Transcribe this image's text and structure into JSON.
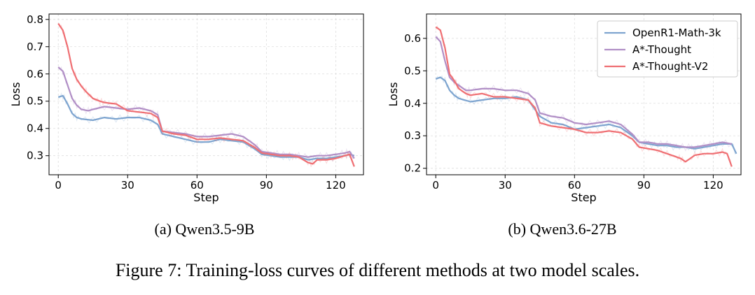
{
  "colors": {
    "OpenR1-Math-3k": "#7da4cf",
    "A*-Thought": "#b18fc6",
    "A*-Thought-V2": "#ef6f73"
  },
  "caption": "Figure 7: Training-loss curves of different methods at two model scales.",
  "chart_data": [
    {
      "type": "line",
      "subcaption": "(a) Qwen3.5-9B",
      "xlabel": "Step",
      "ylabel": "Loss",
      "xlim": [
        -4,
        132
      ],
      "ylim": [
        0.23,
        0.82
      ],
      "xticks": [
        0,
        30,
        60,
        90,
        120
      ],
      "yticks": [
        0.3,
        0.4,
        0.5,
        0.6,
        0.7,
        0.8
      ],
      "ytick_labels": [
        "0.3",
        "0.4",
        "0.5",
        "0.6",
        "0.7",
        "0.8"
      ],
      "grid": true,
      "legend": null,
      "series": [
        {
          "name": "OpenR1-Math-3k",
          "points": [
            [
              0,
              0.515
            ],
            [
              2,
              0.52
            ],
            [
              4,
              0.49
            ],
            [
              6,
              0.455
            ],
            [
              8,
              0.44
            ],
            [
              10,
              0.435
            ],
            [
              15,
              0.43
            ],
            [
              20,
              0.44
            ],
            [
              25,
              0.435
            ],
            [
              30,
              0.44
            ],
            [
              35,
              0.44
            ],
            [
              40,
              0.43
            ],
            [
              43,
              0.415
            ],
            [
              45,
              0.38
            ],
            [
              50,
              0.37
            ],
            [
              55,
              0.36
            ],
            [
              60,
              0.35
            ],
            [
              65,
              0.35
            ],
            [
              70,
              0.36
            ],
            [
              75,
              0.355
            ],
            [
              80,
              0.35
            ],
            [
              85,
              0.325
            ],
            [
              88,
              0.305
            ],
            [
              92,
              0.3
            ],
            [
              96,
              0.295
            ],
            [
              100,
              0.295
            ],
            [
              104,
              0.295
            ],
            [
              108,
              0.285
            ],
            [
              112,
              0.29
            ],
            [
              116,
              0.29
            ],
            [
              120,
              0.295
            ],
            [
              124,
              0.3
            ],
            [
              126,
              0.305
            ],
            [
              128,
              0.3
            ]
          ]
        },
        {
          "name": "A*-Thought",
          "points": [
            [
              0,
              0.625
            ],
            [
              2,
              0.61
            ],
            [
              4,
              0.56
            ],
            [
              6,
              0.51
            ],
            [
              8,
              0.485
            ],
            [
              10,
              0.47
            ],
            [
              13,
              0.465
            ],
            [
              15,
              0.47
            ],
            [
              20,
              0.48
            ],
            [
              25,
              0.475
            ],
            [
              30,
              0.47
            ],
            [
              35,
              0.475
            ],
            [
              40,
              0.465
            ],
            [
              43,
              0.45
            ],
            [
              45,
              0.39
            ],
            [
              50,
              0.385
            ],
            [
              55,
              0.38
            ],
            [
              60,
              0.37
            ],
            [
              65,
              0.37
            ],
            [
              70,
              0.375
            ],
            [
              75,
              0.38
            ],
            [
              80,
              0.37
            ],
            [
              85,
              0.34
            ],
            [
              88,
              0.315
            ],
            [
              92,
              0.31
            ],
            [
              96,
              0.305
            ],
            [
              100,
              0.305
            ],
            [
              104,
              0.3
            ],
            [
              108,
              0.295
            ],
            [
              112,
              0.3
            ],
            [
              116,
              0.3
            ],
            [
              120,
              0.305
            ],
            [
              124,
              0.31
            ],
            [
              126,
              0.315
            ],
            [
              128,
              0.29
            ]
          ]
        },
        {
          "name": "A*-Thought-V2",
          "points": [
            [
              0,
              0.785
            ],
            [
              2,
              0.76
            ],
            [
              4,
              0.7
            ],
            [
              6,
              0.62
            ],
            [
              8,
              0.58
            ],
            [
              10,
              0.555
            ],
            [
              12,
              0.535
            ],
            [
              15,
              0.51
            ],
            [
              18,
              0.5
            ],
            [
              20,
              0.495
            ],
            [
              25,
              0.49
            ],
            [
              30,
              0.465
            ],
            [
              35,
              0.46
            ],
            [
              40,
              0.455
            ],
            [
              43,
              0.44
            ],
            [
              45,
              0.39
            ],
            [
              50,
              0.38
            ],
            [
              55,
              0.375
            ],
            [
              60,
              0.36
            ],
            [
              65,
              0.36
            ],
            [
              70,
              0.365
            ],
            [
              75,
              0.36
            ],
            [
              80,
              0.355
            ],
            [
              85,
              0.33
            ],
            [
              88,
              0.31
            ],
            [
              92,
              0.305
            ],
            [
              96,
              0.3
            ],
            [
              100,
              0.3
            ],
            [
              104,
              0.295
            ],
            [
              108,
              0.275
            ],
            [
              110,
              0.27
            ],
            [
              112,
              0.285
            ],
            [
              116,
              0.285
            ],
            [
              120,
              0.29
            ],
            [
              124,
              0.3
            ],
            [
              126,
              0.305
            ],
            [
              128,
              0.26
            ]
          ]
        }
      ]
    },
    {
      "type": "line",
      "subcaption": "(b) Qwen3.6-27B",
      "xlabel": "Step",
      "ylabel": "Loss",
      "xlim": [
        -4,
        132
      ],
      "ylim": [
        0.18,
        0.675
      ],
      "xticks": [
        0,
        30,
        60,
        90,
        120
      ],
      "yticks": [
        0.2,
        0.3,
        0.4,
        0.5,
        0.6
      ],
      "ytick_labels": [
        "0.2",
        "0.3",
        "0.4",
        "0.5",
        "0.6"
      ],
      "grid": true,
      "legend": "top-right",
      "series": [
        {
          "name": "OpenR1-Math-3k",
          "points": [
            [
              0,
              0.475
            ],
            [
              2,
              0.48
            ],
            [
              4,
              0.47
            ],
            [
              6,
              0.44
            ],
            [
              8,
              0.425
            ],
            [
              10,
              0.415
            ],
            [
              15,
              0.405
            ],
            [
              20,
              0.41
            ],
            [
              25,
              0.415
            ],
            [
              30,
              0.415
            ],
            [
              35,
              0.42
            ],
            [
              40,
              0.41
            ],
            [
              43,
              0.38
            ],
            [
              45,
              0.36
            ],
            [
              50,
              0.34
            ],
            [
              55,
              0.335
            ],
            [
              60,
              0.32
            ],
            [
              65,
              0.325
            ],
            [
              70,
              0.33
            ],
            [
              75,
              0.335
            ],
            [
              80,
              0.325
            ],
            [
              85,
              0.3
            ],
            [
              88,
              0.28
            ],
            [
              92,
              0.275
            ],
            [
              96,
              0.27
            ],
            [
              100,
              0.27
            ],
            [
              104,
              0.265
            ],
            [
              108,
              0.265
            ],
            [
              112,
              0.26
            ],
            [
              116,
              0.265
            ],
            [
              120,
              0.27
            ],
            [
              124,
              0.275
            ],
            [
              128,
              0.275
            ],
            [
              130,
              0.245
            ]
          ]
        },
        {
          "name": "A*-Thought",
          "points": [
            [
              0,
              0.605
            ],
            [
              2,
              0.59
            ],
            [
              4,
              0.53
            ],
            [
              6,
              0.48
            ],
            [
              8,
              0.465
            ],
            [
              10,
              0.455
            ],
            [
              13,
              0.44
            ],
            [
              15,
              0.44
            ],
            [
              20,
              0.445
            ],
            [
              25,
              0.445
            ],
            [
              30,
              0.44
            ],
            [
              35,
              0.44
            ],
            [
              40,
              0.43
            ],
            [
              43,
              0.41
            ],
            [
              45,
              0.37
            ],
            [
              50,
              0.36
            ],
            [
              55,
              0.355
            ],
            [
              60,
              0.34
            ],
            [
              65,
              0.335
            ],
            [
              70,
              0.34
            ],
            [
              75,
              0.345
            ],
            [
              80,
              0.335
            ],
            [
              85,
              0.305
            ],
            [
              88,
              0.28
            ],
            [
              92,
              0.28
            ],
            [
              96,
              0.275
            ],
            [
              100,
              0.275
            ],
            [
              104,
              0.27
            ],
            [
              108,
              0.265
            ],
            [
              112,
              0.265
            ],
            [
              116,
              0.27
            ],
            [
              120,
              0.275
            ],
            [
              124,
              0.28
            ],
            [
              128,
              0.275
            ]
          ]
        },
        {
          "name": "A*-Thought-V2",
          "points": [
            [
              0,
              0.635
            ],
            [
              2,
              0.625
            ],
            [
              4,
              0.57
            ],
            [
              6,
              0.49
            ],
            [
              8,
              0.47
            ],
            [
              10,
              0.445
            ],
            [
              13,
              0.43
            ],
            [
              15,
              0.425
            ],
            [
              20,
              0.43
            ],
            [
              25,
              0.42
            ],
            [
              30,
              0.42
            ],
            [
              35,
              0.415
            ],
            [
              40,
              0.41
            ],
            [
              43,
              0.385
            ],
            [
              45,
              0.34
            ],
            [
              50,
              0.33
            ],
            [
              55,
              0.325
            ],
            [
              60,
              0.32
            ],
            [
              65,
              0.31
            ],
            [
              70,
              0.31
            ],
            [
              75,
              0.315
            ],
            [
              80,
              0.31
            ],
            [
              85,
              0.29
            ],
            [
              88,
              0.265
            ],
            [
              92,
              0.26
            ],
            [
              96,
              0.255
            ],
            [
              100,
              0.245
            ],
            [
              104,
              0.235
            ],
            [
              106,
              0.23
            ],
            [
              108,
              0.22
            ],
            [
              112,
              0.24
            ],
            [
              116,
              0.245
            ],
            [
              120,
              0.245
            ],
            [
              124,
              0.25
            ],
            [
              126,
              0.245
            ],
            [
              128,
              0.205
            ]
          ]
        }
      ]
    }
  ]
}
